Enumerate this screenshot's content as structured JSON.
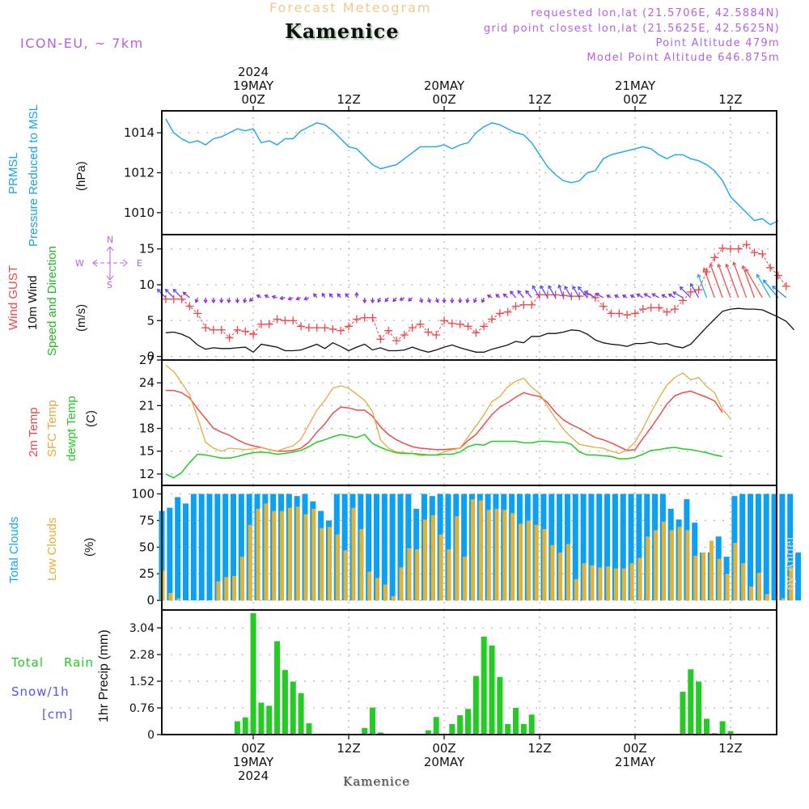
{
  "header": {
    "subtitle": "Forecast Meteogram",
    "station": "Kamenice",
    "model": "ICON-EU, ~ 7km",
    "requested": "requested lon,lat (21.5706E, 42.5884N)",
    "grid_point": "grid point closest lon,lat (21.5625E, 42.5625N)",
    "point_altitude": "Point Altitude 479m",
    "model_altitude": "Model Point Altitude 646.875m"
  },
  "footer": {
    "station": "Kamenice",
    "credit": "by Angel"
  },
  "colors": {
    "pressure": "#1aa5ee",
    "gust": "#f0464a",
    "wind": "#111111",
    "wind_dir": "#22bb22",
    "compass": "#b461e6",
    "temp2m": "#ef4d4d",
    "sfc": "#e9a93c",
    "dewpt": "#22cc22",
    "total_clouds": "#0aa0f4",
    "low_clouds": "#e6b030",
    "precip": "#22cc22",
    "snow": "#5555ee",
    "grid": "#b8b8b8"
  },
  "time_axis": {
    "top_labels": [
      {
        "hour": 0,
        "lines": [
          "2024",
          "19MAY",
          "00Z"
        ]
      },
      {
        "hour": 12,
        "lines": [
          "12Z"
        ]
      },
      {
        "hour": 24,
        "lines": [
          "20MAY",
          "00Z"
        ]
      },
      {
        "hour": 36,
        "lines": [
          "12Z"
        ]
      },
      {
        "hour": 48,
        "lines": [
          "21MAY",
          "00Z"
        ]
      },
      {
        "hour": 60,
        "lines": [
          "12Z"
        ]
      }
    ],
    "bottom_labels": [
      {
        "hour": 0,
        "lines": [
          "00Z",
          "19MAY",
          "2024"
        ]
      },
      {
        "hour": 12,
        "lines": [
          "12Z"
        ]
      },
      {
        "hour": 24,
        "lines": [
          "00Z",
          "20MAY"
        ]
      },
      {
        "hour": 36,
        "lines": [
          "12Z"
        ]
      },
      {
        "hour": 48,
        "lines": [
          "00Z",
          "21MAY"
        ]
      },
      {
        "hour": 60,
        "lines": [
          "12Z"
        ]
      }
    ],
    "x_range_hours": [
      -11.5,
      65.8
    ],
    "first_hour": -11
  },
  "panels": {
    "pressure": {
      "labels": [
        "PRMSL",
        "Pressure Reduced to MSL",
        "(hPa)"
      ]
    },
    "wind": {
      "labels": [
        "Wind GUST",
        "10m Wind",
        "Speed and Direction",
        "(m/s)"
      ],
      "compass": {
        "N": "N",
        "S": "S",
        "E": "E",
        "W": "W"
      }
    },
    "temp": {
      "labels": [
        "2m Temp",
        "SFC Temp",
        "dewpt Temp",
        "(C)"
      ]
    },
    "clouds": {
      "labels": [
        "Total Clouds",
        "Low Clouds",
        "(%)"
      ]
    },
    "precip": {
      "labels": [
        "Total",
        "Rain",
        "Snow/1h",
        "[cm]",
        "1hr Precip (mm)"
      ]
    }
  },
  "chart_data": [
    {
      "type": "line",
      "title": "PRMSL Pressure Reduced to MSL",
      "ylabel": "(hPa)",
      "ylim": [
        1008.9,
        1015.1
      ],
      "yticks": [
        1010,
        1012,
        1014
      ],
      "grid": true,
      "series": [
        {
          "name": "PRMSL",
          "values": [
            1014.7,
            1014.0,
            1013.7,
            1013.5,
            1013.6,
            1013.4,
            1013.7,
            1013.8,
            1014.0,
            1014.2,
            1014.1,
            1014.2,
            1013.5,
            1013.6,
            1013.4,
            1013.7,
            1013.7,
            1014.1,
            1014.3,
            1014.5,
            1014.4,
            1014.1,
            1013.7,
            1013.3,
            1013.2,
            1012.8,
            1012.4,
            1012.2,
            1012.3,
            1012.4,
            1012.7,
            1013.0,
            1013.3,
            1013.3,
            1013.3,
            1013.4,
            1013.2,
            1013.4,
            1013.5,
            1014.0,
            1014.3,
            1014.5,
            1014.4,
            1014.2,
            1014.0,
            1013.9,
            1013.5,
            1012.9,
            1012.3,
            1011.9,
            1011.6,
            1011.5,
            1011.6,
            1012.0,
            1012.1,
            1012.7,
            1012.9,
            1013.0,
            1013.1,
            1013.2,
            1013.3,
            1013.2,
            1012.9,
            1012.7,
            1012.9,
            1012.9,
            1012.7,
            1012.6,
            1012.4,
            1012.1,
            1011.6,
            1010.8,
            1010.4,
            1010.0,
            1009.6,
            1009.7,
            1009.4,
            1009.6
          ]
        }
      ]
    },
    {
      "type": "line",
      "title": "Wind GUST / 10m Wind Speed and Direction",
      "ylabel": "(m/s)",
      "ylim": [
        -0.5,
        17.0
      ],
      "yticks": [
        0,
        5,
        10,
        15
      ],
      "grid": true,
      "series": [
        {
          "name": "Wind GUST",
          "values": [
            8.0,
            8.0,
            8.0,
            7.0,
            6.0,
            4.0,
            3.7,
            3.7,
            2.6,
            3.7,
            3.5,
            3.1,
            4.5,
            4.5,
            5.2,
            5.0,
            5.0,
            4.2,
            4.0,
            4.0,
            4.0,
            3.8,
            3.6,
            4.2,
            5.2,
            5.4,
            5.4,
            2.4,
            3.6,
            2.2,
            3.0,
            4.0,
            4.5,
            3.4,
            3.0,
            5.0,
            4.6,
            4.5,
            4.2,
            3.3,
            4.2,
            5.2,
            6.0,
            6.2,
            7.0,
            7.2,
            7.2,
            8.6,
            8.6,
            8.6,
            8.5,
            8.4,
            8.4,
            8.7,
            8.2,
            7.0,
            6.0,
            6.0,
            5.8,
            6.0,
            6.6,
            6.8,
            6.8,
            6.2,
            6.6,
            7.8,
            9.0,
            9.3,
            11.8,
            13.8,
            15.1,
            15.0,
            15.0,
            15.6,
            14.5,
            14.3,
            12.4,
            11.3,
            9.8
          ]
        },
        {
          "name": "10m Wind",
          "values": [
            3.3,
            3.4,
            3.1,
            2.6,
            1.6,
            1.0,
            1.2,
            1.1,
            1.1,
            1.2,
            1.3,
            0.6,
            1.7,
            1.5,
            1.3,
            0.8,
            0.8,
            0.9,
            1.3,
            1.7,
            1.1,
            1.9,
            1.4,
            0.8,
            1.3,
            1.7,
            0.9,
            1.2,
            0.8,
            0.8,
            0.9,
            1.3,
            0.9,
            0.6,
            0.9,
            1.3,
            1.6,
            1.2,
            0.9,
            0.6,
            0.6,
            1.0,
            1.3,
            1.6,
            2.1,
            1.9,
            2.8,
            2.8,
            3.2,
            3.2,
            3.4,
            3.7,
            3.6,
            3.1,
            2.3,
            1.9,
            1.7,
            1.6,
            1.4,
            1.8,
            1.8,
            2.0,
            1.7,
            1.8,
            1.4,
            1.2,
            1.7,
            2.9,
            4.1,
            5.2,
            6.3,
            6.6,
            6.7,
            6.6,
            6.6,
            6.5,
            6.0,
            5.5,
            4.9,
            3.7
          ]
        },
        {
          "name": "Wind Direction (deg, toward)",
          "values": [
            315,
            315,
            315,
            310,
            200,
            180,
            180,
            180,
            190,
            180,
            190,
            225,
            300,
            300,
            285,
            260,
            250,
            250,
            250,
            320,
            330,
            320,
            320,
            320,
            0,
            180,
            180,
            210,
            220,
            220,
            240,
            230,
            160,
            160,
            160,
            180,
            180,
            180,
            190,
            200,
            200,
            300,
            310,
            310,
            320,
            320,
            320,
            330,
            330,
            330,
            340,
            330,
            330,
            320,
            300,
            300,
            300,
            300,
            300,
            300,
            300,
            300,
            300,
            300,
            300,
            300,
            315,
            330,
            340,
            340,
            340,
            340,
            340,
            340,
            340,
            330,
            330,
            320,
            310
          ]
        }
      ]
    },
    {
      "type": "line",
      "title": "2m Temp / SFC Temp / dewpt Temp",
      "ylabel": "(C)",
      "ylim": [
        10.5,
        27.0
      ],
      "yticks": [
        12,
        15,
        18,
        21,
        24,
        27
      ],
      "grid": true,
      "series": [
        {
          "name": "2m Temp",
          "values": [
            23.0,
            23.0,
            22.7,
            22.0,
            20.6,
            19.3,
            18.0,
            17.5,
            17.1,
            16.5,
            16.0,
            15.7,
            15.5,
            15.2,
            15.0,
            15.0,
            15.1,
            15.4,
            16.2,
            17.5,
            18.6,
            20.0,
            20.8,
            20.7,
            20.4,
            20.4,
            19.6,
            18.2,
            17.2,
            16.5,
            16.0,
            15.6,
            15.4,
            15.3,
            15.2,
            15.2,
            15.3,
            15.4,
            16.4,
            17.2,
            18.5,
            19.8,
            20.8,
            21.4,
            22.1,
            22.7,
            22.4,
            22.2,
            21.4,
            20.1,
            19.1,
            18.5,
            18.0,
            17.4,
            16.8,
            16.5,
            16.1,
            15.6,
            15.1,
            15.2,
            16.7,
            18.1,
            19.6,
            21.2,
            22.3,
            22.7,
            22.9,
            22.5,
            22.1,
            21.6,
            20.1
          ]
        },
        {
          "name": "SFC Temp",
          "values": [
            26.3,
            25.5,
            24.0,
            22.4,
            19.4,
            16.2,
            15.4,
            15.0,
            15.4,
            15.3,
            15.2,
            15.3,
            15.5,
            15.2,
            15.0,
            15.4,
            15.7,
            16.6,
            18.5,
            20.4,
            21.7,
            23.3,
            23.6,
            23.3,
            22.5,
            21.7,
            20.2,
            16.5,
            15.4,
            14.9,
            14.8,
            14.7,
            14.4,
            14.5,
            14.5,
            14.9,
            15.2,
            15.4,
            16.9,
            18.3,
            19.8,
            21.5,
            22.2,
            23.5,
            24.2,
            24.6,
            23.4,
            22.6,
            20.9,
            19.3,
            17.9,
            16.8,
            15.9,
            15.7,
            15.5,
            15.4,
            15.0,
            14.7,
            15.2,
            16.2,
            18.0,
            20.1,
            22.0,
            23.7,
            24.7,
            25.3,
            24.4,
            24.7,
            23.5,
            22.7,
            20.5,
            19.3
          ]
        },
        {
          "name": "dewpt Temp",
          "values": [
            12.0,
            11.5,
            12.2,
            13.5,
            14.6,
            14.5,
            14.3,
            14.1,
            14.1,
            14.3,
            14.6,
            14.8,
            14.9,
            14.8,
            14.6,
            14.7,
            14.9,
            15.1,
            15.6,
            16.2,
            16.5,
            16.9,
            17.2,
            17.0,
            16.8,
            17.2,
            16.0,
            15.5,
            15.1,
            14.8,
            14.7,
            14.7,
            14.6,
            14.5,
            14.5,
            14.6,
            14.6,
            14.9,
            15.6,
            15.9,
            15.8,
            16.3,
            16.3,
            16.3,
            16.3,
            16.1,
            16.1,
            16.3,
            16.3,
            16.2,
            16.2,
            15.9,
            14.9,
            14.5,
            14.5,
            14.4,
            14.3,
            14.0,
            14.0,
            14.2,
            14.6,
            15.1,
            15.2,
            15.4,
            15.5,
            15.3,
            15.2,
            15.0,
            14.8,
            14.5,
            14.3
          ]
        }
      ]
    },
    {
      "type": "bar",
      "title": "Total Clouds / Low Clouds",
      "ylabel": "(%)",
      "ylim": [
        -9,
        108
      ],
      "yticks": [
        0,
        25,
        50,
        75,
        100
      ],
      "grid": true,
      "series": [
        {
          "name": "Total Clouds",
          "values": [
            84,
            87,
            97,
            91,
            100,
            100,
            100,
            100,
            100,
            100,
            100,
            100,
            100,
            100,
            100,
            100,
            100,
            98,
            100,
            93,
            84,
            75,
            100,
            100,
            100,
            100,
            100,
            100,
            100,
            100,
            100,
            100,
            86,
            100,
            98,
            100,
            100,
            100,
            100,
            100,
            100,
            100,
            100,
            100,
            100,
            100,
            100,
            100,
            100,
            100,
            100,
            100,
            100,
            100,
            100,
            100,
            100,
            100,
            100,
            100,
            100,
            100,
            100,
            100,
            86,
            76,
            95,
            73,
            45,
            45,
            60,
            41,
            98,
            100,
            100,
            100,
            100,
            100,
            100,
            100,
            45
          ]
        },
        {
          "name": "Low Clouds",
          "values": [
            28,
            7,
            2,
            0,
            0,
            0,
            0,
            18,
            22,
            23,
            41,
            71,
            86,
            91,
            84,
            84,
            87,
            88,
            81,
            86,
            68,
            69,
            62,
            47,
            87,
            67,
            27,
            21,
            15,
            4,
            31,
            49,
            48,
            76,
            80,
            62,
            48,
            79,
            41,
            95,
            94,
            85,
            86,
            85,
            82,
            72,
            75,
            71,
            67,
            52,
            45,
            53,
            20,
            35,
            33,
            31,
            32,
            30,
            30,
            35,
            40,
            60,
            66,
            74,
            66,
            69,
            66,
            42,
            45,
            56,
            39,
            25,
            54,
            35,
            13,
            26,
            6,
            0,
            2,
            31
          ]
        }
      ]
    },
    {
      "type": "bar",
      "title": "1hr Precip (mm)",
      "ylabel": "1hr Precip (mm)",
      "ylim": [
        0,
        3.55
      ],
      "yticks": [
        0,
        0.76,
        1.52,
        2.28,
        3.04
      ],
      "grid": true,
      "series": [
        {
          "name": "Total Rain",
          "values": [
            0,
            0,
            0,
            0,
            0,
            0,
            0,
            0,
            0,
            0.38,
            0.49,
            3.46,
            0.91,
            0.82,
            2.66,
            1.84,
            1.51,
            1.18,
            0.32,
            0,
            0,
            0,
            0,
            0,
            0,
            0.19,
            0.77,
            0.06,
            0,
            0,
            0,
            0,
            0,
            0.12,
            0.5,
            0,
            0.3,
            0.55,
            0.73,
            1.67,
            2.79,
            2.54,
            1.64,
            0.3,
            0.76,
            0.3,
            0.57,
            0,
            0,
            0,
            0,
            0.02,
            0,
            0.02,
            0,
            0,
            0,
            0,
            0,
            0,
            0,
            0,
            0,
            0,
            0,
            1.22,
            1.86,
            1.51,
            0.45,
            0.04,
            0.38,
            0.1,
            0,
            0,
            0,
            0,
            0,
            0,
            0,
            0
          ]
        }
      ]
    }
  ]
}
